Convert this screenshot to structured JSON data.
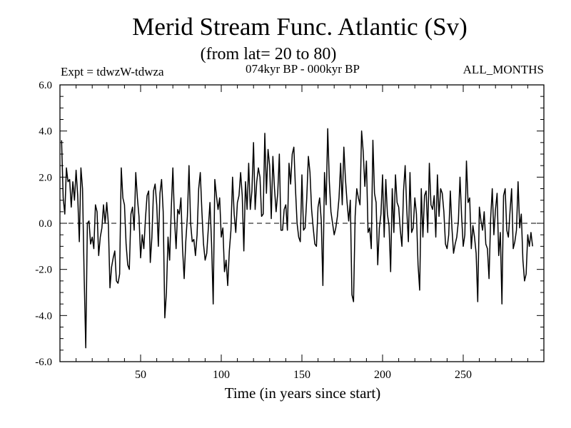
{
  "chart_data": {
    "type": "line",
    "title": "Merid Stream Func. Atlantic (Sv)",
    "subtitle": "(from lat= 20 to 80)",
    "experiment": "Expt = tdwzW-tdwza",
    "period": "074kyr BP - 000kyr BP",
    "months": "ALL_MONTHS",
    "xlabel": "Time (in years since start)",
    "ylabel": "",
    "xlim": [
      0,
      300
    ],
    "ylim": [
      -6.0,
      6.0
    ],
    "x_ticks": [
      50,
      100,
      150,
      200,
      250
    ],
    "y_ticks": [
      "-6.0",
      "-4.0",
      "-2.0",
      "0.0",
      "2.0",
      "4.0",
      "6.0"
    ],
    "reference_line": 0.0,
    "x_start": 1,
    "x_step": 1,
    "series": [
      {
        "name": "Merid Stream Func. Atlantic",
        "values": [
          3.6,
          1.1,
          0.4,
          2.4,
          1.8,
          1.9,
          0.7,
          1.8,
          1.0,
          2.3,
          1.2,
          -0.8,
          2.4,
          1.5,
          -2.3,
          -5.4,
          0.0,
          0.1,
          -0.9,
          -0.6,
          -1.1,
          0.8,
          0.5,
          -1.4,
          -0.6,
          -0.2,
          0.8,
          0.0,
          0.9,
          0.0,
          -2.8,
          -1.9,
          -1.5,
          -1.2,
          -2.5,
          -2.6,
          -2.2,
          2.4,
          1.1,
          0.8,
          -0.9,
          -1.8,
          -2.0,
          0.4,
          0.7,
          -0.3,
          2.2,
          1.1,
          0.3,
          -1.5,
          -0.5,
          -1.1,
          0.2,
          1.2,
          1.4,
          -1.7,
          -0.6,
          1.4,
          1.7,
          0.8,
          -1.0,
          1.3,
          1.9,
          0.5,
          -4.1,
          -3.0,
          -0.6,
          -1.6,
          0.6,
          2.4,
          0.2,
          -1.1,
          0.6,
          0.4,
          1.1,
          -1.1,
          -2.4,
          -0.8,
          0.3,
          2.5,
          0.0,
          -0.8,
          -0.7,
          -1.4,
          -0.5,
          1.5,
          2.2,
          0.5,
          -0.9,
          -1.6,
          -1.3,
          -0.2,
          0.9,
          -0.9,
          -3.5,
          1.9,
          1.2,
          0.6,
          1.1,
          -0.6,
          -0.2,
          -2.1,
          -1.6,
          -2.7,
          -1.2,
          -0.3,
          2.0,
          0.4,
          -0.4,
          0.9,
          1.2,
          2.2,
          1.2,
          -1.2,
          1.8,
          0.6,
          2.6,
          0.6,
          1.4,
          3.5,
          0.6,
          1.8,
          2.4,
          2.0,
          0.3,
          0.4,
          3.9,
          1.3,
          3.2,
          2.5,
          0.2,
          2.9,
          1.5,
          0.5,
          1.3,
          3.0,
          -0.3,
          -0.3,
          0.6,
          0.8,
          -0.3,
          2.6,
          1.7,
          3.0,
          3.3,
          1.5,
          0.0,
          -0.6,
          -0.8,
          2.1,
          -0.3,
          -0.2,
          1.1,
          2.9,
          2.2,
          0.6,
          -0.2,
          -0.9,
          -1.0,
          0.7,
          1.1,
          0.1,
          -2.7,
          2.2,
          0.8,
          4.1,
          1.8,
          0.5,
          0.0,
          -0.5,
          -0.2,
          0.3,
          1.1,
          2.6,
          0.8,
          3.3,
          1.9,
          0.9,
          0.1,
          1.0,
          -3.1,
          -3.4,
          0.3,
          1.5,
          1.1,
          0.8,
          4.0,
          3.1,
          1.6,
          2.7,
          -0.4,
          -0.2,
          -1.1,
          3.6,
          1.3,
          0.9,
          -1.8,
          -0.2,
          0.4,
          2.1,
          -0.6,
          1.9,
          0.4,
          -0.1,
          -2.1,
          1.5,
          -0.4,
          2.1,
          0.9,
          0.7,
          -0.3,
          -1.0,
          1.4,
          2.5,
          0.6,
          -0.8,
          2.2,
          -0.4,
          -0.2,
          1.1,
          0.4,
          -1.8,
          -2.9,
          1.5,
          -0.6,
          1.2,
          1.4,
          -0.4,
          2.6,
          0.8,
          0.6,
          1.2,
          -0.6,
          2.1,
          0.3,
          1.5,
          1.3,
          0.5,
          -0.9,
          -1.1,
          -0.5,
          1.4,
          -0.2,
          -1.3,
          -0.9,
          -0.6,
          0.1,
          2.0,
          0.3,
          -1.0,
          -0.5,
          2.7,
          0.9,
          1.1,
          -1.1,
          -0.1,
          -0.6,
          -1.3,
          -3.4,
          0.7,
          0.1,
          -0.3,
          0.5,
          -0.9,
          -1.1,
          -2.4,
          0.2,
          1.5,
          -0.5,
          0.6,
          1.3,
          -1.4,
          -0.4,
          -3.5,
          1.2,
          1.5,
          -0.3,
          -0.6,
          0.5,
          1.5,
          -1.1,
          -0.8,
          -0.3,
          1.8,
          -0.2,
          0.4,
          -1.6,
          -2.5,
          -2.2,
          -0.5,
          -1.0,
          -0.4,
          -1.0
        ]
      }
    ]
  }
}
